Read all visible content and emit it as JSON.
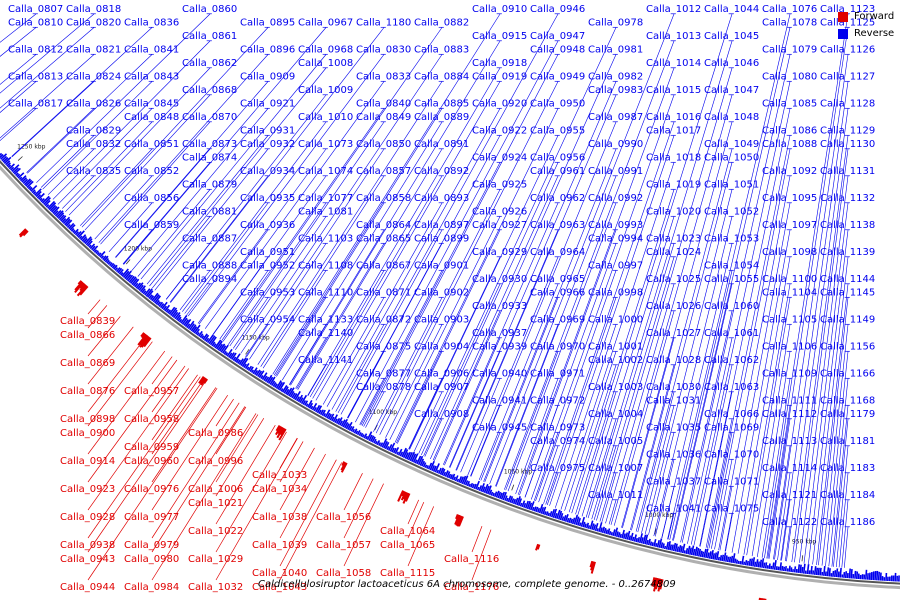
{
  "colors": {
    "forward": "#e00000",
    "reverse": "#0000ee",
    "backbone": "#555555"
  },
  "legend": [
    {
      "label": "Forward",
      "color": "#e00000"
    },
    {
      "label": "Reverse",
      "color": "#0000ee"
    }
  ],
  "caption": "Caldicellulosiruptor lactoaceticus 6A chromosome, complete genome. - 0..2674809",
  "ticks": [
    "900 kbp",
    "950 kbp",
    "1000 kbp",
    "1050 kbp",
    "1100 kbp",
    "1150 kbp",
    "1200 kbp",
    "1250 kbp"
  ],
  "genes": [
    {
      "label": "Calla_0807",
      "strand": "reverse"
    },
    {
      "label": "Calla_0810",
      "strand": "reverse"
    },
    {
      "label": "Calla_0812",
      "strand": "reverse"
    },
    {
      "label": "Calla_0813",
      "strand": "reverse"
    },
    {
      "label": "Calla_0817",
      "strand": "reverse"
    },
    {
      "label": "Calla_0818",
      "strand": "reverse"
    },
    {
      "label": "Calla_0820",
      "strand": "reverse"
    },
    {
      "label": "Calla_0821",
      "strand": "reverse"
    },
    {
      "label": "Calla_0824",
      "strand": "reverse"
    },
    {
      "label": "Calla_0826",
      "strand": "reverse"
    },
    {
      "label": "Calla_0829",
      "strand": "reverse"
    },
    {
      "label": "Calla_0832",
      "strand": "reverse"
    },
    {
      "label": "Calla_0835",
      "strand": "reverse"
    },
    {
      "label": "Calla_0836",
      "strand": "reverse"
    },
    {
      "label": "Calla_0839",
      "strand": "forward"
    },
    {
      "label": "Calla_0841",
      "strand": "reverse"
    },
    {
      "label": "Calla_0843",
      "strand": "reverse"
    },
    {
      "label": "Calla_0845",
      "strand": "reverse"
    },
    {
      "label": "Calla_0848",
      "strand": "reverse"
    },
    {
      "label": "Calla_0851",
      "strand": "reverse"
    },
    {
      "label": "Calla_0852",
      "strand": "reverse"
    },
    {
      "label": "Calla_0856",
      "strand": "reverse"
    },
    {
      "label": "Calla_0859",
      "strand": "reverse"
    },
    {
      "label": "Calla_0860",
      "strand": "reverse"
    },
    {
      "label": "Calla_0861",
      "strand": "reverse"
    },
    {
      "label": "Calla_0862",
      "strand": "reverse"
    },
    {
      "label": "Calla_0866",
      "strand": "forward"
    },
    {
      "label": "Calla_0868",
      "strand": "reverse"
    },
    {
      "label": "Calla_0869",
      "strand": "forward"
    },
    {
      "label": "Calla_0870",
      "strand": "reverse"
    },
    {
      "label": "Calla_0873",
      "strand": "reverse"
    },
    {
      "label": "Calla_0874",
      "strand": "reverse"
    },
    {
      "label": "Calla_0876",
      "strand": "forward"
    },
    {
      "label": "Calla_0879",
      "strand": "reverse"
    },
    {
      "label": "Calla_0881",
      "strand": "reverse"
    },
    {
      "label": "Calla_0887",
      "strand": "reverse"
    },
    {
      "label": "Calla_0888",
      "strand": "reverse"
    },
    {
      "label": "Calla_0894",
      "strand": "reverse"
    },
    {
      "label": "Calla_0895",
      "strand": "reverse"
    },
    {
      "label": "Calla_0896",
      "strand": "reverse"
    },
    {
      "label": "Calla_0898",
      "strand": "forward"
    },
    {
      "label": "Calla_0900",
      "strand": "forward"
    },
    {
      "label": "Calla_0909",
      "strand": "reverse"
    },
    {
      "label": "Calla_0914",
      "strand": "forward"
    },
    {
      "label": "Calla_0921",
      "strand": "reverse"
    },
    {
      "label": "Calla_0923",
      "strand": "forward"
    },
    {
      "label": "Calla_0928",
      "strand": "forward"
    },
    {
      "label": "Calla_0931",
      "strand": "reverse"
    },
    {
      "label": "Calla_0932",
      "strand": "reverse"
    },
    {
      "label": "Calla_0934",
      "strand": "reverse"
    },
    {
      "label": "Calla_0935",
      "strand": "reverse"
    },
    {
      "label": "Calla_0936",
      "strand": "reverse"
    },
    {
      "label": "Calla_0938",
      "strand": "forward"
    },
    {
      "label": "Calla_0943",
      "strand": "forward"
    },
    {
      "label": "Calla_0944",
      "strand": "forward"
    },
    {
      "label": "Calla_0951",
      "strand": "reverse"
    },
    {
      "label": "Calla_0952",
      "strand": "reverse"
    },
    {
      "label": "Calla_0953",
      "strand": "reverse"
    },
    {
      "label": "Calla_0954",
      "strand": "reverse"
    },
    {
      "label": "Calla_0957",
      "strand": "forward"
    },
    {
      "label": "Calla_0958",
      "strand": "forward"
    },
    {
      "label": "Calla_0959",
      "strand": "forward"
    },
    {
      "label": "Calla_0960",
      "strand": "forward"
    },
    {
      "label": "Calla_0967",
      "strand": "reverse"
    },
    {
      "label": "Calla_0968",
      "strand": "reverse"
    },
    {
      "label": "Calla_0976",
      "strand": "forward"
    },
    {
      "label": "Calla_0977",
      "strand": "forward"
    },
    {
      "label": "Calla_0979",
      "strand": "forward"
    },
    {
      "label": "Calla_0980",
      "strand": "forward"
    },
    {
      "label": "Calla_0984",
      "strand": "forward"
    },
    {
      "label": "Calla_0986",
      "strand": "forward"
    },
    {
      "label": "Calla_0996",
      "strand": "forward"
    },
    {
      "label": "Calla_1006",
      "strand": "forward"
    },
    {
      "label": "Calla_1008",
      "strand": "reverse"
    },
    {
      "label": "Calla_1009",
      "strand": "reverse"
    },
    {
      "label": "Calla_1010",
      "strand": "reverse"
    },
    {
      "label": "Calla_1021",
      "strand": "forward"
    },
    {
      "label": "Calla_1022",
      "strand": "forward"
    },
    {
      "label": "Calla_1029",
      "strand": "forward"
    },
    {
      "label": "Calla_1032",
      "strand": "forward"
    },
    {
      "label": "Calla_1033",
      "strand": "forward"
    },
    {
      "label": "Calla_1034",
      "strand": "forward"
    },
    {
      "label": "Calla_1038",
      "strand": "forward"
    },
    {
      "label": "Calla_1039",
      "strand": "forward"
    },
    {
      "label": "Calla_1040",
      "strand": "forward"
    },
    {
      "label": "Calla_1043",
      "strand": "forward"
    },
    {
      "label": "Calla_1056",
      "strand": "forward"
    },
    {
      "label": "Calla_1057",
      "strand": "forward"
    },
    {
      "label": "Calla_1058",
      "strand": "forward"
    },
    {
      "label": "Calla_1064",
      "strand": "forward"
    },
    {
      "label": "Calla_1065",
      "strand": "forward"
    },
    {
      "label": "Calla_1073",
      "strand": "reverse"
    },
    {
      "label": "Calla_1074",
      "strand": "reverse"
    },
    {
      "label": "Calla_1077",
      "strand": "reverse"
    },
    {
      "label": "Calla_1081",
      "strand": "reverse"
    },
    {
      "label": "Calla_1103",
      "strand": "reverse"
    },
    {
      "label": "Calla_1108",
      "strand": "reverse"
    },
    {
      "label": "Calla_1110",
      "strand": "reverse"
    },
    {
      "label": "Calla_1115",
      "strand": "forward"
    },
    {
      "label": "Calla_1116",
      "strand": "forward"
    },
    {
      "label": "Calla_1133",
      "strand": "reverse"
    },
    {
      "label": "Calla_1140",
      "strand": "reverse"
    },
    {
      "label": "Calla_1141",
      "strand": "reverse"
    },
    {
      "label": "Calla_1176",
      "strand": "forward"
    },
    {
      "label": "Calla_1180",
      "strand": "reverse"
    },
    {
      "label": "Calla_0830",
      "strand": "reverse"
    },
    {
      "label": "Calla_0833",
      "strand": "reverse"
    },
    {
      "label": "Calla_0840",
      "strand": "reverse"
    },
    {
      "label": "Calla_0849",
      "strand": "reverse"
    },
    {
      "label": "Calla_0850",
      "strand": "reverse"
    },
    {
      "label": "Calla_0857",
      "strand": "reverse"
    },
    {
      "label": "Calla_0858",
      "strand": "reverse"
    },
    {
      "label": "Calla_0864",
      "strand": "reverse"
    },
    {
      "label": "Calla_0865",
      "strand": "reverse"
    },
    {
      "label": "Calla_0867",
      "strand": "reverse"
    },
    {
      "label": "Calla_0871",
      "strand": "reverse"
    },
    {
      "label": "Calla_0872",
      "strand": "reverse"
    },
    {
      "label": "Calla_0875",
      "strand": "reverse"
    },
    {
      "label": "Calla_0877",
      "strand": "reverse"
    },
    {
      "label": "Calla_0878",
      "strand": "reverse"
    },
    {
      "label": "Calla_0882",
      "strand": "reverse"
    },
    {
      "label": "Calla_0883",
      "strand": "reverse"
    },
    {
      "label": "Calla_0884",
      "strand": "reverse"
    },
    {
      "label": "Calla_0885",
      "strand": "reverse"
    },
    {
      "label": "Calla_0889",
      "strand": "reverse"
    },
    {
      "label": "Calla_0891",
      "strand": "reverse"
    },
    {
      "label": "Calla_0892",
      "strand": "reverse"
    },
    {
      "label": "Calla_0893",
      "strand": "reverse"
    },
    {
      "label": "Calla_0897",
      "strand": "reverse"
    },
    {
      "label": "Calla_0899",
      "strand": "reverse"
    },
    {
      "label": "Calla_0901",
      "strand": "reverse"
    },
    {
      "label": "Calla_0902",
      "strand": "reverse"
    },
    {
      "label": "Calla_0903",
      "strand": "reverse"
    },
    {
      "label": "Calla_0904",
      "strand": "reverse"
    },
    {
      "label": "Calla_0906",
      "strand": "reverse"
    },
    {
      "label": "Calla_0907",
      "strand": "reverse"
    },
    {
      "label": "Calla_0908",
      "strand": "reverse"
    },
    {
      "label": "Calla_0910",
      "strand": "reverse"
    },
    {
      "label": "Calla_0915",
      "strand": "reverse"
    },
    {
      "label": "Calla_0918",
      "strand": "reverse"
    },
    {
      "label": "Calla_0919",
      "strand": "reverse"
    },
    {
      "label": "Calla_0920",
      "strand": "reverse"
    },
    {
      "label": "Calla_0922",
      "strand": "reverse"
    },
    {
      "label": "Calla_0924",
      "strand": "reverse"
    },
    {
      "label": "Calla_0925",
      "strand": "reverse"
    },
    {
      "label": "Calla_0926",
      "strand": "reverse"
    },
    {
      "label": "Calla_0927",
      "strand": "reverse"
    },
    {
      "label": "Calla_0929",
      "strand": "reverse"
    },
    {
      "label": "Calla_0930",
      "strand": "reverse"
    },
    {
      "label": "Calla_0933",
      "strand": "reverse"
    },
    {
      "label": "Calla_0937",
      "strand": "reverse"
    },
    {
      "label": "Calla_0939",
      "strand": "reverse"
    },
    {
      "label": "Calla_0940",
      "strand": "reverse"
    },
    {
      "label": "Calla_0941",
      "strand": "reverse"
    },
    {
      "label": "Calla_0945",
      "strand": "reverse"
    },
    {
      "label": "Calla_0946",
      "strand": "reverse"
    },
    {
      "label": "Calla_0947",
      "strand": "reverse"
    },
    {
      "label": "Calla_0948",
      "strand": "reverse"
    },
    {
      "label": "Calla_0949",
      "strand": "reverse"
    },
    {
      "label": "Calla_0950",
      "strand": "reverse"
    },
    {
      "label": "Calla_0955",
      "strand": "reverse"
    },
    {
      "label": "Calla_0956",
      "strand": "reverse"
    },
    {
      "label": "Calla_0961",
      "strand": "reverse"
    },
    {
      "label": "Calla_0962",
      "strand": "reverse"
    },
    {
      "label": "Calla_0963",
      "strand": "reverse"
    },
    {
      "label": "Calla_0964",
      "strand": "reverse"
    },
    {
      "label": "Calla_0965",
      "strand": "reverse"
    },
    {
      "label": "Calla_0966",
      "strand": "reverse"
    },
    {
      "label": "Calla_0969",
      "strand": "reverse"
    },
    {
      "label": "Calla_0970",
      "strand": "reverse"
    },
    {
      "label": "Calla_0971",
      "strand": "reverse"
    },
    {
      "label": "Calla_0972",
      "strand": "reverse"
    },
    {
      "label": "Calla_0973",
      "strand": "reverse"
    },
    {
      "label": "Calla_0974",
      "strand": "reverse"
    },
    {
      "label": "Calla_0975",
      "strand": "reverse"
    },
    {
      "label": "Calla_0978",
      "strand": "reverse"
    },
    {
      "label": "Calla_0981",
      "strand": "reverse"
    },
    {
      "label": "Calla_0982",
      "strand": "reverse"
    },
    {
      "label": "Calla_0983",
      "strand": "reverse"
    },
    {
      "label": "Calla_0987",
      "strand": "reverse"
    },
    {
      "label": "Calla_0990",
      "strand": "reverse"
    },
    {
      "label": "Calla_0991",
      "strand": "reverse"
    },
    {
      "label": "Calla_0992",
      "strand": "reverse"
    },
    {
      "label": "Calla_0993",
      "strand": "reverse"
    },
    {
      "label": "Calla_0994",
      "strand": "reverse"
    },
    {
      "label": "Calla_0997",
      "strand": "reverse"
    },
    {
      "label": "Calla_0998",
      "strand": "reverse"
    },
    {
      "label": "Calla_1000",
      "strand": "reverse"
    },
    {
      "label": "Calla_1001",
      "strand": "reverse"
    },
    {
      "label": "Calla_1002",
      "strand": "reverse"
    },
    {
      "label": "Calla_1003",
      "strand": "reverse"
    },
    {
      "label": "Calla_1004",
      "strand": "reverse"
    },
    {
      "label": "Calla_1005",
      "strand": "reverse"
    },
    {
      "label": "Calla_1007",
      "strand": "reverse"
    },
    {
      "label": "Calla_1011",
      "strand": "reverse"
    },
    {
      "label": "Calla_1012",
      "strand": "reverse"
    },
    {
      "label": "Calla_1013",
      "strand": "reverse"
    },
    {
      "label": "Calla_1014",
      "strand": "reverse"
    },
    {
      "label": "Calla_1015",
      "strand": "reverse"
    },
    {
      "label": "Calla_1016",
      "strand": "reverse"
    },
    {
      "label": "Calla_1017",
      "strand": "reverse"
    },
    {
      "label": "Calla_1018",
      "strand": "reverse"
    },
    {
      "label": "Calla_1019",
      "strand": "reverse"
    },
    {
      "label": "Calla_1020",
      "strand": "reverse"
    },
    {
      "label": "Calla_1023",
      "strand": "reverse"
    },
    {
      "label": "Calla_1024",
      "strand": "reverse"
    },
    {
      "label": "Calla_1025",
      "strand": "reverse"
    },
    {
      "label": "Calla_1026",
      "strand": "reverse"
    },
    {
      "label": "Calla_1027",
      "strand": "reverse"
    },
    {
      "label": "Calla_1028",
      "strand": "reverse"
    },
    {
      "label": "Calla_1030",
      "strand": "reverse"
    },
    {
      "label": "Calla_1031",
      "strand": "reverse"
    },
    {
      "label": "Calla_1035",
      "strand": "reverse"
    },
    {
      "label": "Calla_1036",
      "strand": "reverse"
    },
    {
      "label": "Calla_1037",
      "strand": "reverse"
    },
    {
      "label": "Calla_1041",
      "strand": "reverse"
    },
    {
      "label": "Calla_1044",
      "strand": "reverse"
    },
    {
      "label": "Calla_1045",
      "strand": "reverse"
    },
    {
      "label": "Calla_1046",
      "strand": "reverse"
    },
    {
      "label": "Calla_1047",
      "strand": "reverse"
    },
    {
      "label": "Calla_1048",
      "strand": "reverse"
    },
    {
      "label": "Calla_1049",
      "strand": "reverse"
    },
    {
      "label": "Calla_1050",
      "strand": "reverse"
    },
    {
      "label": "Calla_1051",
      "strand": "reverse"
    },
    {
      "label": "Calla_1052",
      "strand": "reverse"
    },
    {
      "label": "Calla_1053",
      "strand": "reverse"
    },
    {
      "label": "Calla_1054",
      "strand": "reverse"
    },
    {
      "label": "Calla_1055",
      "strand": "reverse"
    },
    {
      "label": "Calla_1060",
      "strand": "reverse"
    },
    {
      "label": "Calla_1061",
      "strand": "reverse"
    },
    {
      "label": "Calla_1062",
      "strand": "reverse"
    },
    {
      "label": "Calla_1063",
      "strand": "reverse"
    },
    {
      "label": "Calla_1066",
      "strand": "reverse"
    },
    {
      "label": "Calla_1069",
      "strand": "reverse"
    },
    {
      "label": "Calla_1070",
      "strand": "reverse"
    },
    {
      "label": "Calla_1071",
      "strand": "reverse"
    },
    {
      "label": "Calla_1075",
      "strand": "reverse"
    },
    {
      "label": "Calla_1076",
      "strand": "reverse"
    },
    {
      "label": "Calla_1078",
      "strand": "reverse"
    },
    {
      "label": "Calla_1079",
      "strand": "reverse"
    },
    {
      "label": "Calla_1080",
      "strand": "reverse"
    },
    {
      "label": "Calla_1085",
      "strand": "reverse"
    },
    {
      "label": "Calla_1086",
      "strand": "reverse"
    },
    {
      "label": "Calla_1088",
      "strand": "reverse"
    },
    {
      "label": "Calla_1092",
      "strand": "reverse"
    },
    {
      "label": "Calla_1095",
      "strand": "reverse"
    },
    {
      "label": "Calla_1097",
      "strand": "reverse"
    },
    {
      "label": "Calla_1098",
      "strand": "reverse"
    },
    {
      "label": "Calla_1100",
      "strand": "reverse"
    },
    {
      "label": "Calla_1104",
      "strand": "reverse"
    },
    {
      "label": "Calla_1105",
      "strand": "reverse"
    },
    {
      "label": "Calla_1106",
      "strand": "reverse"
    },
    {
      "label": "Calla_1109",
      "strand": "reverse"
    },
    {
      "label": "Calla_1111",
      "strand": "reverse"
    },
    {
      "label": "Calla_1112",
      "strand": "reverse"
    },
    {
      "label": "Calla_1113",
      "strand": "reverse"
    },
    {
      "label": "Calla_1114",
      "strand": "reverse"
    },
    {
      "label": "Calla_1121",
      "strand": "reverse"
    },
    {
      "label": "Calla_1122",
      "strand": "reverse"
    },
    {
      "label": "Calla_1123",
      "strand": "reverse"
    },
    {
      "label": "Calla_1125",
      "strand": "reverse"
    },
    {
      "label": "Calla_1126",
      "strand": "reverse"
    },
    {
      "label": "Calla_1127",
      "strand": "reverse"
    },
    {
      "label": "Calla_1128",
      "strand": "reverse"
    },
    {
      "label": "Calla_1129",
      "strand": "reverse"
    },
    {
      "label": "Calla_1130",
      "strand": "reverse"
    },
    {
      "label": "Calla_1131",
      "strand": "reverse"
    },
    {
      "label": "Calla_1132",
      "strand": "reverse"
    },
    {
      "label": "Calla_1138",
      "strand": "reverse"
    },
    {
      "label": "Calla_1139",
      "strand": "reverse"
    },
    {
      "label": "Calla_1144",
      "strand": "reverse"
    },
    {
      "label": "Calla_1145",
      "strand": "reverse"
    },
    {
      "label": "Calla_1149",
      "strand": "reverse"
    },
    {
      "label": "Calla_1156",
      "strand": "reverse"
    },
    {
      "label": "Calla_1166",
      "strand": "reverse"
    },
    {
      "label": "Calla_1168",
      "strand": "reverse"
    },
    {
      "label": "Calla_1179",
      "strand": "reverse"
    },
    {
      "label": "Calla_1181",
      "strand": "reverse"
    },
    {
      "label": "Calla_1183",
      "strand": "reverse"
    },
    {
      "label": "Calla_1184",
      "strand": "reverse"
    },
    {
      "label": "Calla_1186",
      "strand": "reverse"
    }
  ]
}
